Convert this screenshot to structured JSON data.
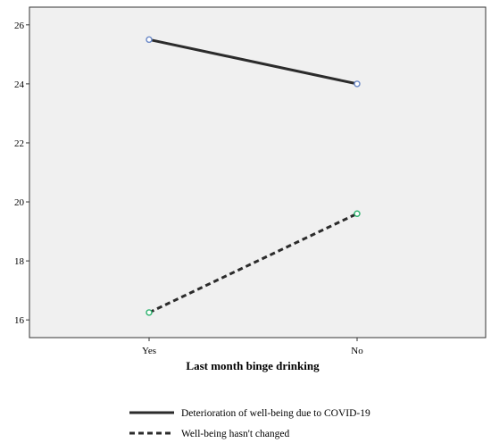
{
  "chart_data": {
    "type": "line",
    "title": "",
    "xlabel": "Last month binge drinking",
    "ylabel": "",
    "categories": [
      "Yes",
      "No"
    ],
    "ylim": [
      15.4,
      26.6
    ],
    "yticks": [
      16,
      18,
      20,
      22,
      24,
      26
    ],
    "ytick_labels": [
      "16",
      "18",
      "20",
      "22",
      "24",
      "26"
    ],
    "grid": false,
    "legend_placement": "bottom",
    "series": [
      {
        "name": "Deterioration of well-being due to COVID-19",
        "values": [
          25.5,
          24.0
        ],
        "line_style": "solid",
        "line_color": "#2b2b2b",
        "marker_color": "#6a88c7"
      },
      {
        "name": "Well-being hasn't changed",
        "values": [
          16.25,
          19.6
        ],
        "line_style": "dashed",
        "line_color": "#2b2b2b",
        "marker_color": "#2fb36f"
      }
    ],
    "plot_background": "#f0f0f0"
  }
}
